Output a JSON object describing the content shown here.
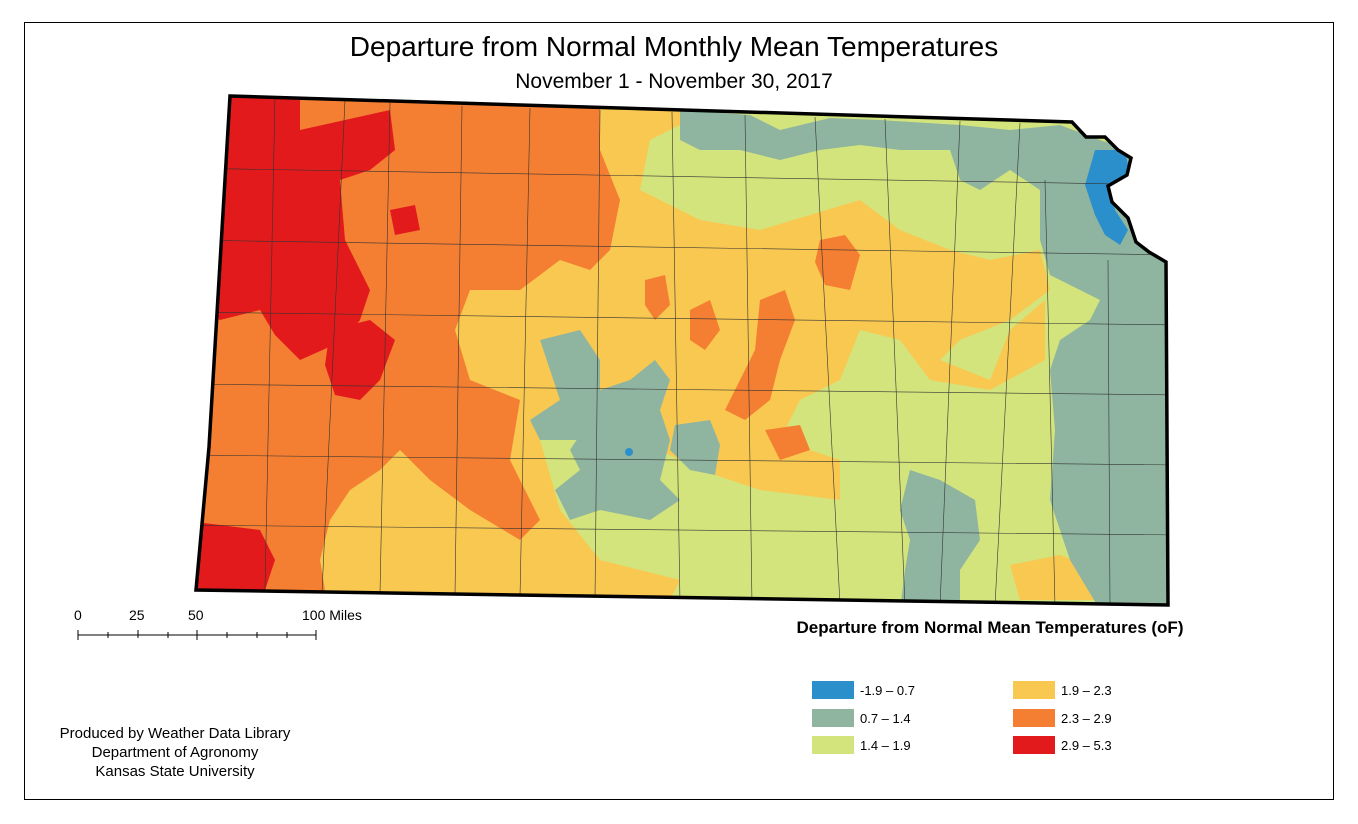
{
  "title": "Departure from Normal Monthly Mean Temperatures",
  "subtitle": "November 1 - November 30, 2017",
  "scale_bar": {
    "labels": [
      "0",
      "25",
      "50",
      "100 Miles"
    ]
  },
  "legend": {
    "title": "Departure from Normal Mean Temperatures (oF)",
    "items": [
      {
        "label": "-1.9 – 0.7",
        "color": "#2b8fcc"
      },
      {
        "label": "0.7 – 1.4",
        "color": "#8fb5a0"
      },
      {
        "label": "1.4 – 1.9",
        "color": "#d3e47c"
      },
      {
        "label": "1.9 – 2.3",
        "color": "#f9c851"
      },
      {
        "label": "2.3 – 2.9",
        "color": "#f47f32"
      },
      {
        "label": "2.9 – 5.3",
        "color": "#e31a1c"
      }
    ]
  },
  "credits": {
    "line1": "Produced by Weather Data Library",
    "line2": "Department of Agronomy",
    "line3": "Kansas State University"
  }
}
